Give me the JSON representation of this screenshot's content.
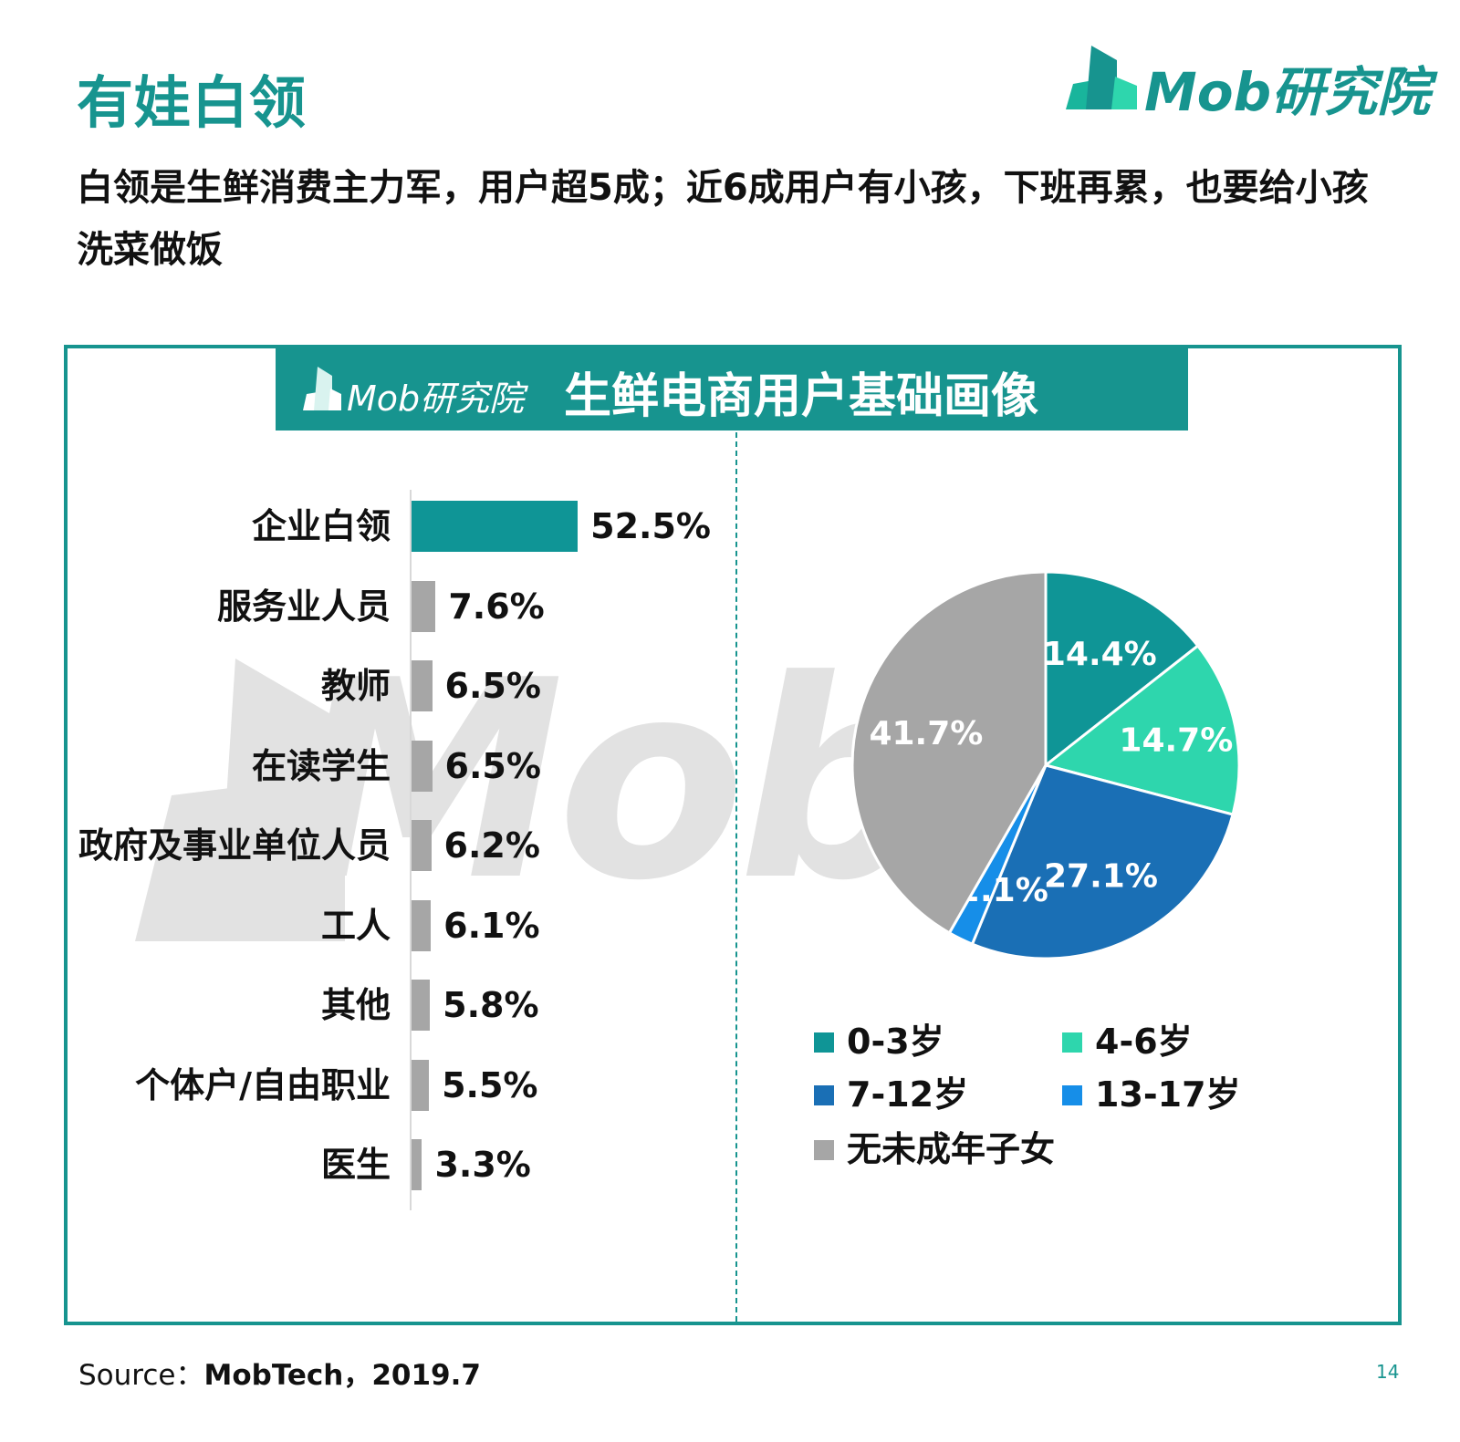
{
  "page": {
    "title": "有娃白领",
    "subtitle": "白领是生鲜消费主力军，用户超5成；近6成用户有小孩，下班再累，也要给小孩洗菜做饭",
    "logo_text": "Mob研究院",
    "page_number": "14"
  },
  "panel": {
    "title": "生鲜电商用户基础画像",
    "logo_text": "Mob研究院",
    "watermark_text": "Mob"
  },
  "source": {
    "label": "Source：",
    "value": "MobTech，2019.7"
  },
  "colors": {
    "accent": "#17948f",
    "bar_highlight": "#0f9596",
    "bar_default": "#a6a6a6"
  },
  "chart_data": [
    {
      "type": "bar",
      "orientation": "horizontal",
      "categories": [
        "企业白领",
        "服务业人员",
        "教师",
        "在读学生",
        "政府及事业单位人员",
        "工人",
        "其他",
        "个体户/自由职业",
        "医生"
      ],
      "values": [
        52.5,
        7.6,
        6.5,
        6.5,
        6.2,
        6.1,
        5.8,
        5.5,
        3.3
      ],
      "value_labels": [
        "52.5%",
        "7.6%",
        "6.5%",
        "6.5%",
        "6.2%",
        "6.1%",
        "5.8%",
        "5.5%",
        "3.3%"
      ],
      "colors": [
        "#0f9596",
        "#a6a6a6",
        "#a6a6a6",
        "#a6a6a6",
        "#a6a6a6",
        "#a6a6a6",
        "#a6a6a6",
        "#a6a6a6",
        "#a6a6a6"
      ],
      "unit": "%",
      "grid": false
    },
    {
      "type": "pie",
      "categories": [
        "0-3岁",
        "4-6岁",
        "7-12岁",
        "13-17岁",
        "无未成年子女"
      ],
      "values": [
        14.4,
        14.7,
        27.1,
        2.1,
        41.7
      ],
      "value_labels": [
        "14.4%",
        "14.7%",
        "27.1%",
        "2.1%",
        "41.7%"
      ],
      "colors": [
        "#0f9596",
        "#2ed6ad",
        "#1a6fb5",
        "#168ee8",
        "#a6a6a6"
      ],
      "legend": "bottom",
      "unit": "%"
    }
  ]
}
